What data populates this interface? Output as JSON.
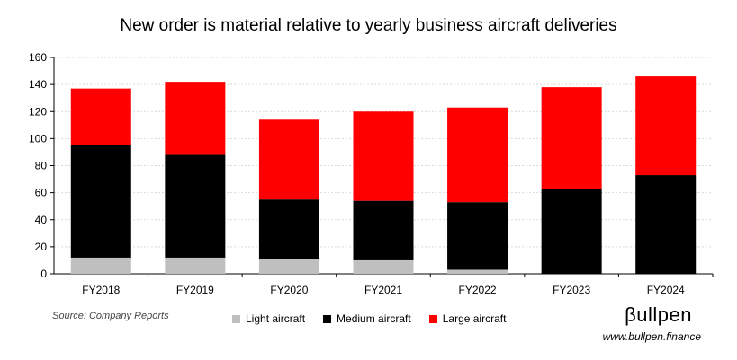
{
  "title": "New order is material relative to yearly business aircraft deliveries",
  "source": "Source: Company Reports",
  "brand": {
    "name": "βullpen",
    "website": "www.bullpen.finance"
  },
  "chart_data": {
    "type": "bar",
    "stacked": true,
    "title": "New order is material relative to yearly business aircraft deliveries",
    "xlabel": "",
    "ylabel": "",
    "ylim": [
      0,
      160
    ],
    "yticks": [
      0,
      20,
      40,
      60,
      80,
      100,
      120,
      140,
      160
    ],
    "grid": true,
    "legend_position": "bottom",
    "categories": [
      "FY2018",
      "FY2019",
      "FY2020",
      "FY2021",
      "FY2022",
      "FY2023",
      "FY2024"
    ],
    "series": [
      {
        "name": "Light aircraft",
        "color": "#bfbfbf",
        "values": [
          12,
          12,
          11,
          10,
          3,
          0,
          0
        ]
      },
      {
        "name": "Medium aircraft",
        "color": "#000000",
        "values": [
          83,
          76,
          44,
          44,
          50,
          63,
          73
        ]
      },
      {
        "name": "Large aircraft",
        "color": "#ff0000",
        "values": [
          42,
          54,
          59,
          66,
          70,
          75,
          73
        ]
      }
    ]
  }
}
